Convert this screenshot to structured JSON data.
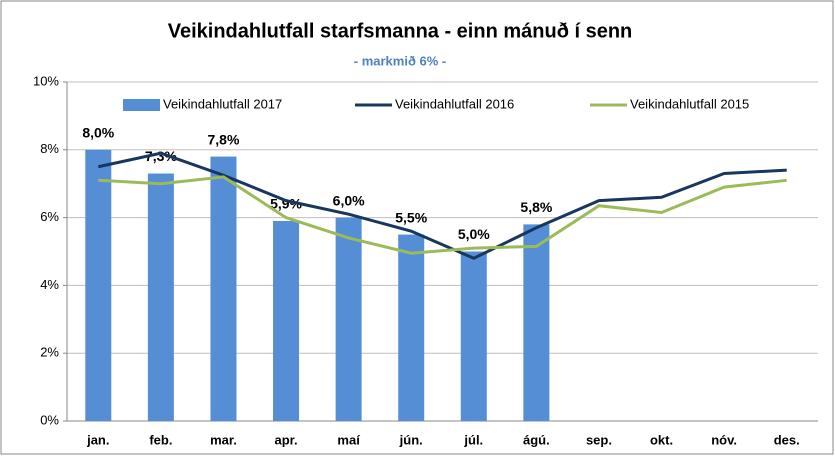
{
  "chart_data": {
    "type": "bar",
    "title": "Veikindahlutfall starfsmanna - einn mánuð í senn",
    "subtitle": "- markmið 6% -",
    "categories": [
      "jan.",
      "feb.",
      "mar.",
      "apr.",
      "maí",
      "jún.",
      "júl.",
      "ágú.",
      "sep.",
      "okt.",
      "nóv.",
      "des."
    ],
    "series": [
      {
        "name": "Veikindahlutfall 2017",
        "type": "bar",
        "color": "#558ed5",
        "values": [
          8.0,
          7.3,
          7.8,
          5.9,
          6.0,
          5.5,
          5.0,
          5.8,
          null,
          null,
          null,
          null
        ],
        "value_labels": [
          "8,0%",
          "7,3%",
          "7,8%",
          "5,9%",
          "6,0%",
          "5,5%",
          "5,0%",
          "5,8%",
          null,
          null,
          null,
          null
        ]
      },
      {
        "name": "Veikindahlutfall 2016",
        "type": "line",
        "color": "#17375e",
        "values": [
          7.5,
          7.9,
          7.25,
          6.5,
          6.1,
          5.6,
          4.8,
          5.7,
          6.5,
          6.6,
          7.3,
          7.4
        ]
      },
      {
        "name": "Veikindahlutfall 2015",
        "type": "line",
        "color": "#9bbb59",
        "values": [
          7.1,
          7.0,
          7.2,
          6.0,
          5.4,
          4.95,
          5.1,
          5.15,
          6.35,
          6.15,
          6.9,
          7.1
        ]
      }
    ],
    "ylim": [
      0,
      10
    ],
    "yticks": [
      {
        "value": 0,
        "label": "0%"
      },
      {
        "value": 2,
        "label": "2%"
      },
      {
        "value": 4,
        "label": "4%"
      },
      {
        "value": 6,
        "label": "6%"
      },
      {
        "value": 8,
        "label": "8%"
      },
      {
        "value": 10,
        "label": "10%"
      }
    ],
    "grid": true
  }
}
